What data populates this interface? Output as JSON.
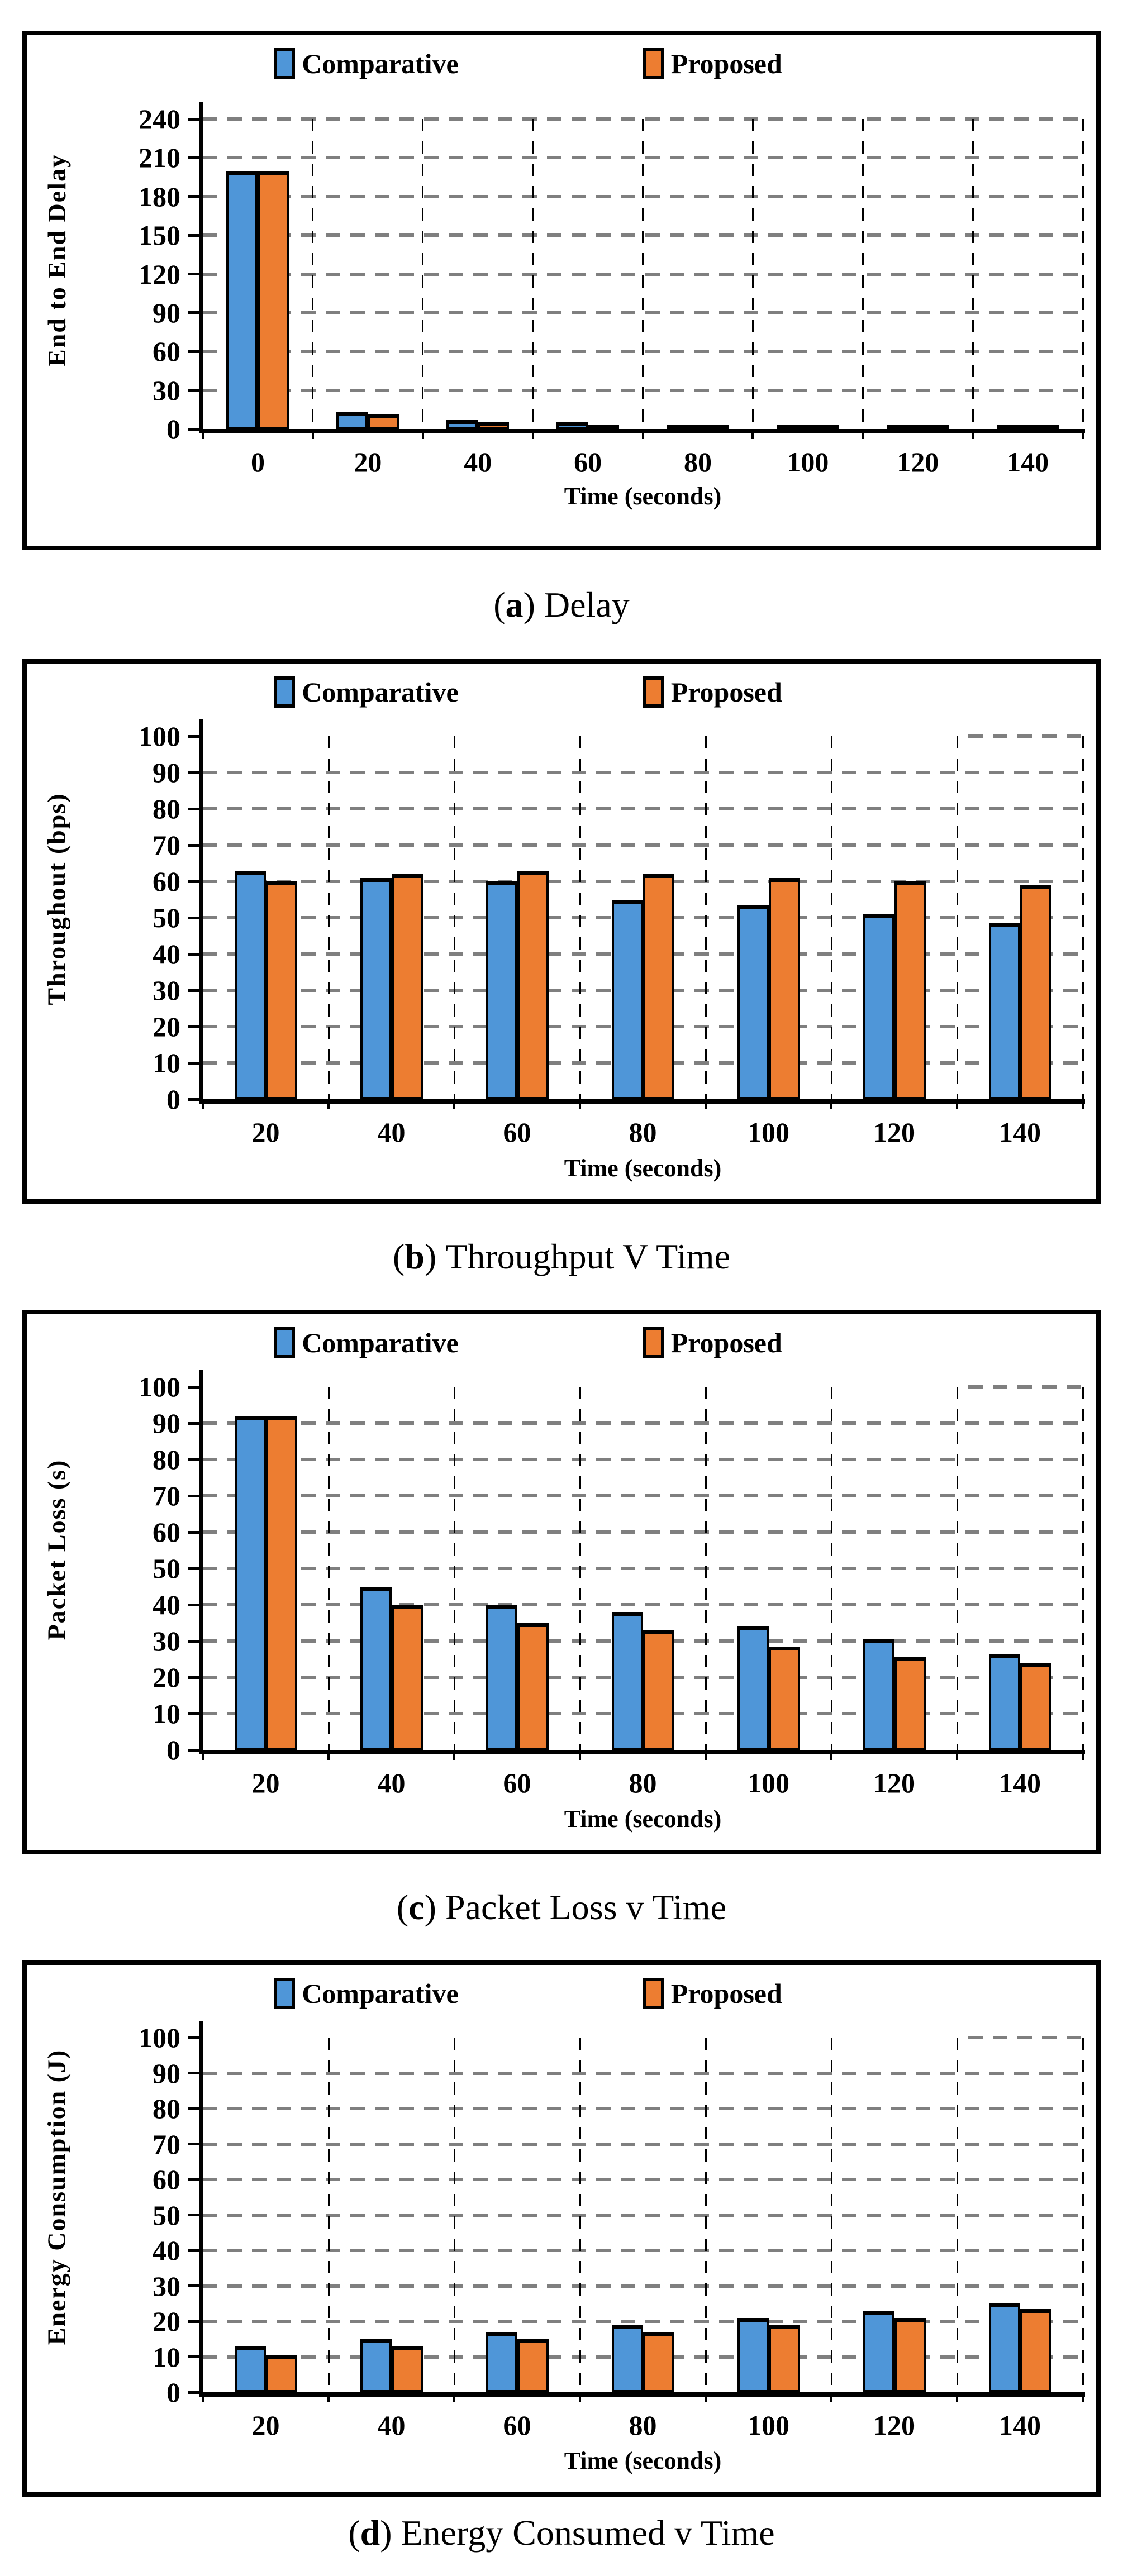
{
  "legend": {
    "comparative": "Comparative",
    "proposed": "Proposed"
  },
  "colors": {
    "comparative": "#4F96D8",
    "proposed": "#ED7D31",
    "gridline": "#7F7F7F",
    "axis": "#000000"
  },
  "chart_data": [
    {
      "type": "bar",
      "caption_letter": "a",
      "caption_text": "Delay",
      "ylabel": "End to End Delay",
      "xlabel": "Time (seconds)",
      "categories": [
        "0",
        "20",
        "40",
        "60",
        "80",
        "100",
        "120",
        "140"
      ],
      "series": [
        {
          "name": "Comparative",
          "values": [
            200,
            13.5,
            7,
            5,
            2,
            1.5,
            1,
            1
          ]
        },
        {
          "name": "Proposed",
          "values": [
            200,
            11.5,
            5,
            3,
            1.2,
            1,
            0.8,
            0.8
          ]
        }
      ],
      "ylim": [
        0,
        240
      ],
      "ytick": 30,
      "grid": "dashed",
      "legend_position": "top",
      "top_gridline": "full"
    },
    {
      "type": "bar",
      "caption_letter": "b",
      "caption_text": "Throughput V Time",
      "ylabel": "Throughout (bps)",
      "xlabel": "Time (seconds)",
      "categories": [
        "20",
        "40",
        "60",
        "80",
        "100",
        "120",
        "140"
      ],
      "series": [
        {
          "name": "Comparative",
          "values": [
            63,
            61,
            60,
            55,
            53.5,
            51,
            48.5
          ]
        },
        {
          "name": "Proposed",
          "values": [
            60,
            62,
            63,
            62,
            61,
            60,
            59
          ]
        }
      ],
      "ylim": [
        0,
        100
      ],
      "ytick": 10,
      "grid": "dashed",
      "legend_position": "top",
      "top_gridline": "partial"
    },
    {
      "type": "bar",
      "caption_letter": "c",
      "caption_text": "Packet Loss v Time",
      "ylabel": "Packet Loss (s)",
      "xlabel": "Time (seconds)",
      "categories": [
        "20",
        "40",
        "60",
        "80",
        "100",
        "120",
        "140"
      ],
      "series": [
        {
          "name": "Comparative",
          "values": [
            92,
            45,
            40,
            38,
            34,
            30.5,
            26.5
          ]
        },
        {
          "name": "Proposed",
          "values": [
            92,
            40,
            35,
            33,
            28.5,
            25.5,
            24
          ]
        }
      ],
      "ylim": [
        0,
        100
      ],
      "ytick": 10,
      "grid": "dashed",
      "legend_position": "top",
      "top_gridline": "partial"
    },
    {
      "type": "bar",
      "caption_letter": "d",
      "caption_text": "Energy Consumed v Time",
      "ylabel": "Energy Consumption (J)",
      "xlabel": "Time (seconds)",
      "categories": [
        "20",
        "40",
        "60",
        "80",
        "100",
        "120",
        "140"
      ],
      "series": [
        {
          "name": "Comparative",
          "values": [
            13,
            15,
            17,
            19,
            21,
            23,
            25
          ]
        },
        {
          "name": "Proposed",
          "values": [
            10.5,
            13,
            15,
            17,
            19,
            21,
            23.5
          ]
        }
      ],
      "ylim": [
        0,
        100
      ],
      "ytick": 10,
      "grid": "dashed",
      "legend_position": "top",
      "top_gridline": "partial"
    }
  ]
}
